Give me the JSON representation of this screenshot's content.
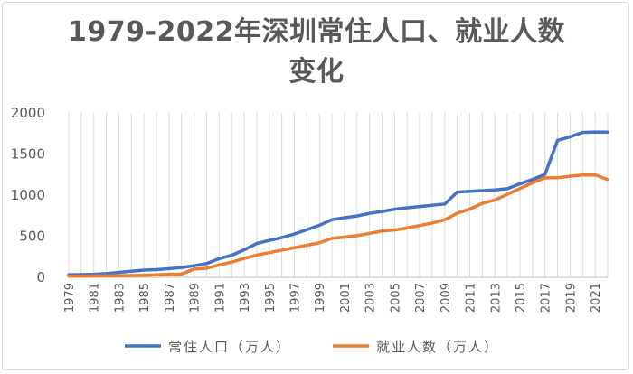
{
  "chart_data": {
    "type": "line",
    "title": "1979-2022年深圳常住人口、就业人数变化",
    "xlabel": "",
    "ylabel": "",
    "ylim": [
      0,
      2000
    ],
    "yticks": [
      0,
      500,
      1000,
      1500,
      2000
    ],
    "x": [
      1979,
      1980,
      1981,
      1982,
      1983,
      1984,
      1985,
      1986,
      1987,
      1988,
      1989,
      1990,
      1991,
      1992,
      1993,
      1994,
      1995,
      1996,
      1997,
      1998,
      1999,
      2000,
      2001,
      2002,
      2003,
      2004,
      2005,
      2006,
      2007,
      2008,
      2009,
      2010,
      2011,
      2012,
      2013,
      2014,
      2015,
      2016,
      2017,
      2018,
      2019,
      2020,
      2021,
      2022
    ],
    "xtick_labels": [
      "1979",
      "1981",
      "1983",
      "1985",
      "1987",
      "1989",
      "1991",
      "1993",
      "1995",
      "1997",
      "1999",
      "2001",
      "2003",
      "2005",
      "2007",
      "2009",
      "2011",
      "2013",
      "2015",
      "2017",
      "2019",
      "2021"
    ],
    "grid": "vertical",
    "legend": "bottom",
    "series": [
      {
        "name": "常住人口（万人）",
        "color": "#4472c4",
        "values": [
          31,
          33,
          37,
          45,
          60,
          74,
          88,
          94,
          105,
          120,
          141,
          168,
          227,
          268,
          335,
          412,
          449,
          483,
          527,
          580,
          633,
          701,
          725,
          746,
          778,
          801,
          828,
          846,
          861,
          877,
          891,
          1037,
          1047,
          1055,
          1063,
          1078,
          1138,
          1190,
          1253,
          1666,
          1710,
          1763,
          1768,
          1766
        ]
      },
      {
        "name": "就业人数（万人）",
        "color": "#ed7d31",
        "values": [
          14,
          15,
          16,
          18,
          20,
          22,
          25,
          30,
          36,
          40,
          100,
          110,
          150,
          185,
          230,
          270,
          300,
          330,
          360,
          390,
          420,
          474,
          489,
          507,
          534,
          563,
          575,
          600,
          630,
          660,
          700,
          780,
          830,
          900,
          940,
          1010,
          1080,
          1150,
          1210,
          1212,
          1230,
          1245,
          1245,
          1190
        ]
      }
    ]
  }
}
